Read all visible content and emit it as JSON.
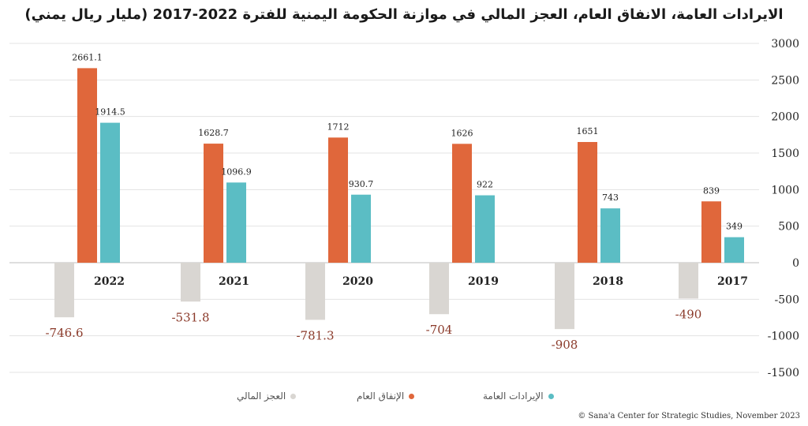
{
  "chart_data": {
    "type": "bar",
    "title": "الايرادات العامة، الانفاق العام، العجز المالي في موازنة الحكومة اليمنية للفترة 2022-2017 (مليار ريال يمني)",
    "categories": [
      "2022",
      "2021",
      "2020",
      "2019",
      "2018",
      "2017"
    ],
    "series": [
      {
        "name": "العجز المالي",
        "color": "#d9d6d2",
        "values": [
          -746.6,
          -531.8,
          -781.3,
          -704,
          -908,
          -490
        ]
      },
      {
        "name": "الإنفاق العام",
        "color": "#e0673b",
        "values": [
          2661.1,
          1628.7,
          1712,
          1626,
          1651,
          839
        ]
      },
      {
        "name": "الإيرادات العامة",
        "color": "#5bbdc4",
        "values": [
          1914.5,
          1096.9,
          930.7,
          922,
          743,
          349
        ]
      }
    ],
    "deficit_label_color": "#8b3a2a",
    "ylim": [
      -1500,
      3000
    ],
    "yticks": [
      3000,
      2500,
      2000,
      1500,
      1000,
      500,
      0,
      -500,
      -1000,
      -1500
    ],
    "ytick_labels": [
      "3000",
      "2500",
      "2000",
      "1500",
      "1000",
      "500",
      "0",
      "-500",
      "-1000",
      "-1500"
    ],
    "gridlines": true,
    "legend_position": "bottom-center",
    "xlabel": "",
    "ylabel": ""
  },
  "credit": "© Sana'a Center for Strategic Studies, November 2023"
}
